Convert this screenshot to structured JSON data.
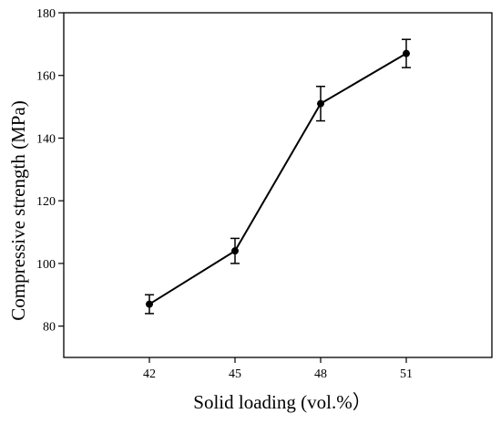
{
  "chart_data": {
    "type": "line",
    "title": "",
    "xlabel": "Solid loading (vol.%）",
    "ylabel": "Compressive strength (MPa)",
    "x": [
      42,
      45,
      48,
      51
    ],
    "x_tick_labels": [
      "42",
      "45",
      "48",
      "51"
    ],
    "xlim": [
      39,
      54
    ],
    "ylim": [
      70,
      180
    ],
    "y_ticks": [
      80,
      100,
      120,
      140,
      160,
      180
    ],
    "y_tick_labels": [
      "80",
      "100",
      "120",
      "140",
      "160",
      "180"
    ],
    "grid": false,
    "legend": "none",
    "series": [
      {
        "values": [
          87,
          104,
          151,
          167
        ],
        "error": [
          3,
          4,
          5.5,
          4.5
        ],
        "color": "#000000",
        "marker": "circle"
      }
    ]
  }
}
